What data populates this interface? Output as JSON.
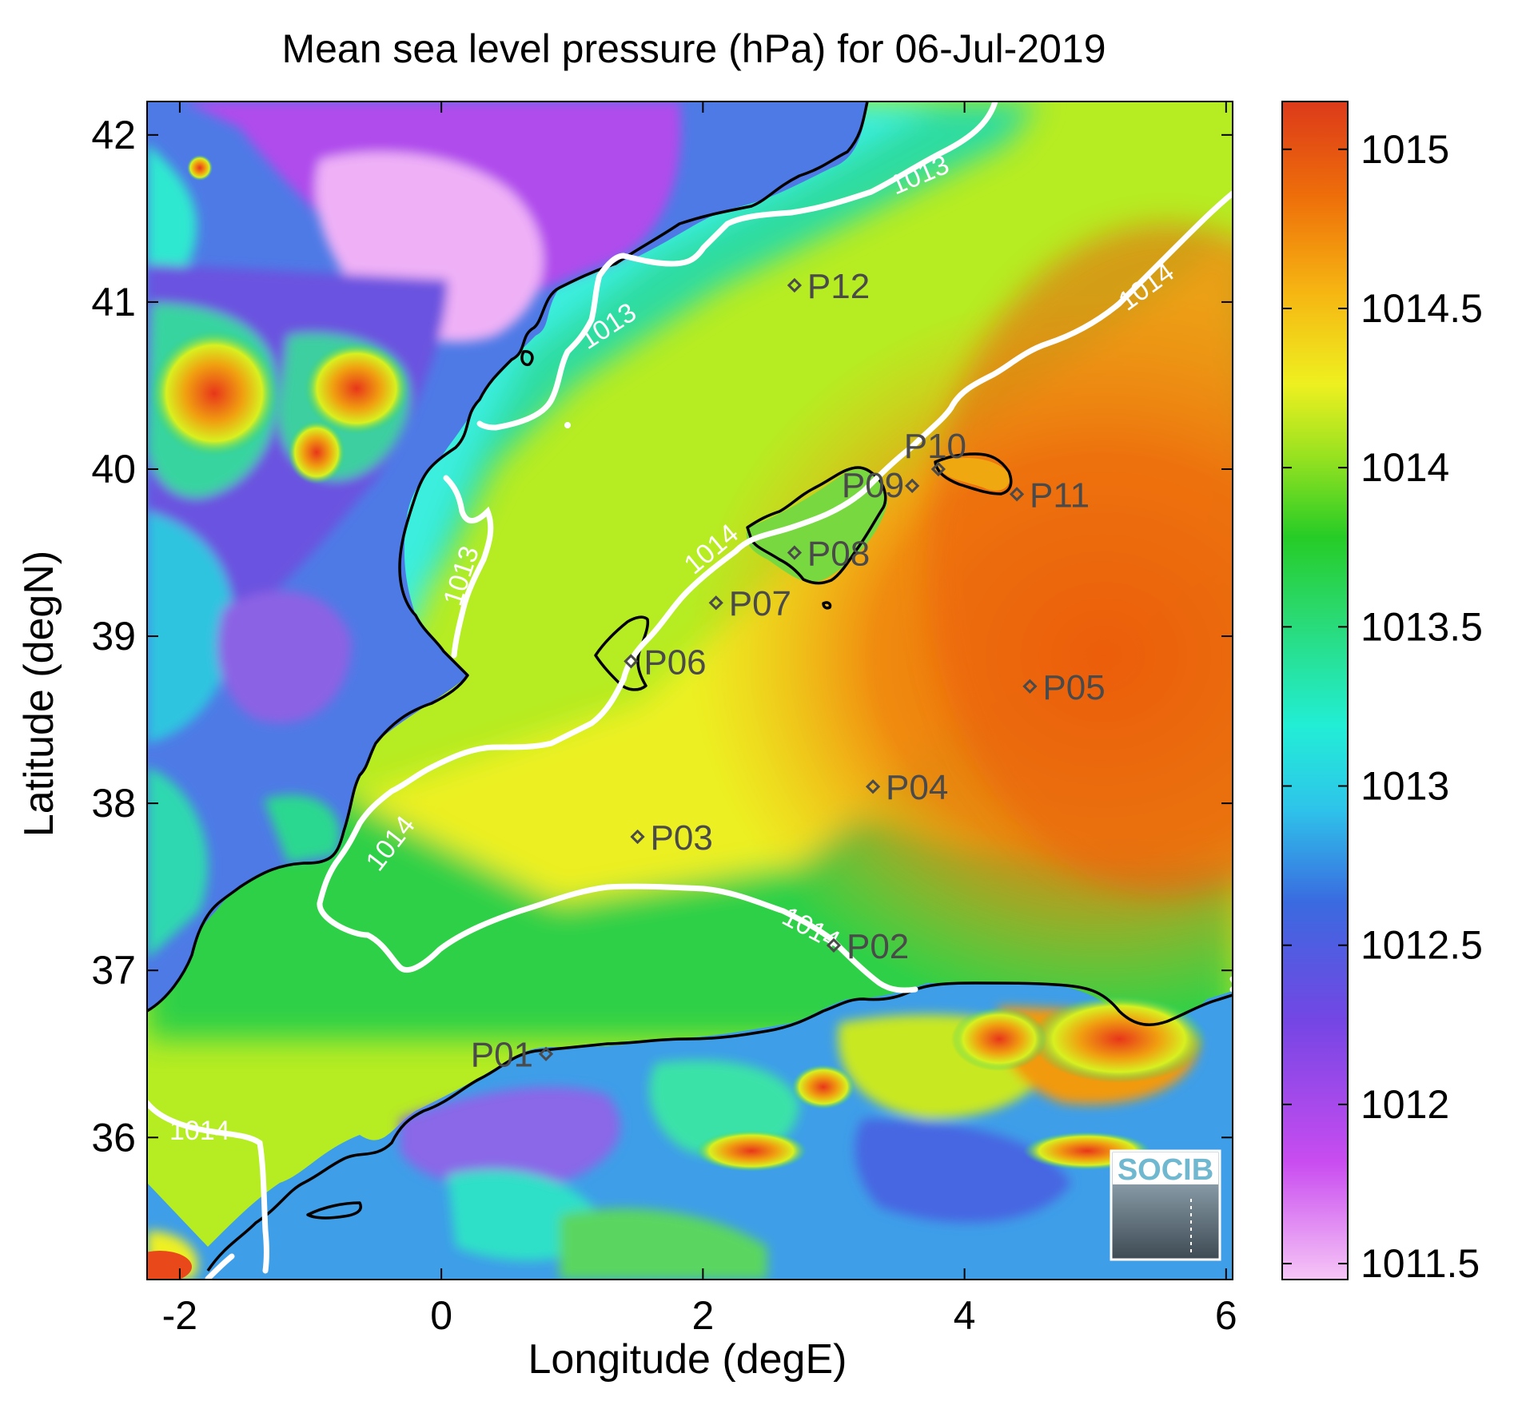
{
  "chart_data": {
    "type": "heatmap",
    "title": "Mean sea level pressure (hPa) for 06-Jul-2019",
    "xlabel": "Longitude (degE)",
    "ylabel": "Latitude (degN)",
    "xlim": [
      -2.25,
      6.05
    ],
    "ylim": [
      35.15,
      42.2
    ],
    "x_ticks": [
      "-2",
      "0",
      "2",
      "4",
      "6"
    ],
    "y_ticks": [
      "36",
      "37",
      "38",
      "39",
      "40",
      "41",
      "42"
    ],
    "colorbar": {
      "range": [
        1011.45,
        1015.15
      ],
      "ticks": [
        "1011.5",
        "1012",
        "1012.5",
        "1013",
        "1013.5",
        "1014",
        "1014.5",
        "1015"
      ],
      "colors": [
        "#f3b0f5",
        "#c14bee",
        "#7a45e6",
        "#3a6fe0",
        "#2ec8e8",
        "#25eed2",
        "#2fdc6f",
        "#22cc22",
        "#8ae020",
        "#ecf020",
        "#f8c614",
        "#f08a0c",
        "#ec6108",
        "#de3d18"
      ]
    },
    "contour_labels": [
      "1013",
      "1013",
      "1013",
      "1014",
      "1014",
      "1014",
      "1014",
      "1014"
    ],
    "stations": [
      {
        "name": "P01",
        "lon": 0.8,
        "lat": 36.5
      },
      {
        "name": "P02",
        "lon": 3.0,
        "lat": 37.15
      },
      {
        "name": "P03",
        "lon": 1.5,
        "lat": 37.8
      },
      {
        "name": "P04",
        "lon": 3.3,
        "lat": 38.1
      },
      {
        "name": "P05",
        "lon": 4.5,
        "lat": 38.7
      },
      {
        "name": "P06",
        "lon": 1.45,
        "lat": 38.85
      },
      {
        "name": "P07",
        "lon": 2.1,
        "lat": 39.2
      },
      {
        "name": "P08",
        "lon": 2.7,
        "lat": 39.5
      },
      {
        "name": "P09",
        "lon": 3.6,
        "lat": 39.9
      },
      {
        "name": "P10",
        "lon": 3.8,
        "lat": 40.0
      },
      {
        "name": "P11",
        "lon": 4.4,
        "lat": 39.85
      },
      {
        "name": "P12",
        "lon": 2.7,
        "lat": 41.1
      }
    ]
  },
  "logo": {
    "text": "SOCIB"
  }
}
